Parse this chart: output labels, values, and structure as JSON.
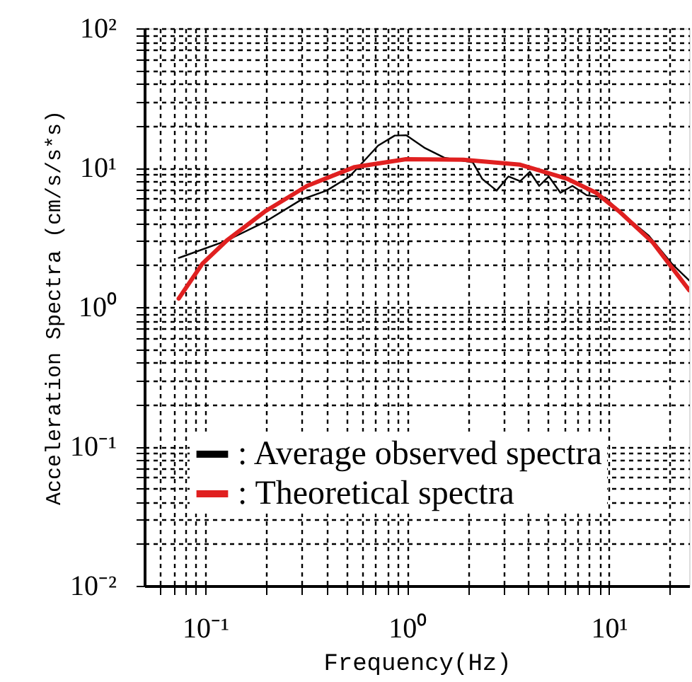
{
  "chart_data": {
    "type": "line",
    "xlabel": "Frequency(Hz)",
    "ylabel": "Acceleration Spectra (cm/s/s*s)",
    "log": "xy",
    "grid": true,
    "legend": "bottom left",
    "marker": "none",
    "line_style": "solid",
    "xlim": [
      0.05,
      25
    ],
    "ylim": [
      0.01,
      100
    ],
    "xticks": [
      {
        "value": 0.06,
        "label": null
      },
      {
        "value": 0.07,
        "label": null
      },
      {
        "value": 0.08,
        "label": null
      },
      {
        "value": 0.09,
        "label": null
      },
      {
        "value": 0.1,
        "label": "10⁻¹"
      },
      {
        "value": 0.2,
        "label": null
      },
      {
        "value": 0.3,
        "label": null
      },
      {
        "value": 0.4,
        "label": null
      },
      {
        "value": 0.5,
        "label": null
      },
      {
        "value": 0.6,
        "label": null
      },
      {
        "value": 0.7,
        "label": null
      },
      {
        "value": 0.8,
        "label": null
      },
      {
        "value": 0.9,
        "label": null
      },
      {
        "value": 1,
        "label": "10⁰"
      },
      {
        "value": 2,
        "label": null
      },
      {
        "value": 3,
        "label": null
      },
      {
        "value": 4,
        "label": null
      },
      {
        "value": 5,
        "label": null
      },
      {
        "value": 6,
        "label": null
      },
      {
        "value": 7,
        "label": null
      },
      {
        "value": 8,
        "label": null
      },
      {
        "value": 9,
        "label": null
      },
      {
        "value": 10,
        "label": "10¹"
      },
      {
        "value": 20,
        "label": null
      }
    ],
    "yticks": [
      {
        "value": 0.01,
        "label": "10⁻²"
      },
      {
        "value": 0.02,
        "label": null
      },
      {
        "value": 0.03,
        "label": null
      },
      {
        "value": 0.04,
        "label": null
      },
      {
        "value": 0.05,
        "label": null
      },
      {
        "value": 0.06,
        "label": null
      },
      {
        "value": 0.07,
        "label": null
      },
      {
        "value": 0.08,
        "label": null
      },
      {
        "value": 0.09,
        "label": null
      },
      {
        "value": 0.1,
        "label": "10⁻¹"
      },
      {
        "value": 0.2,
        "label": null
      },
      {
        "value": 0.3,
        "label": null
      },
      {
        "value": 0.4,
        "label": null
      },
      {
        "value": 0.5,
        "label": null
      },
      {
        "value": 0.6,
        "label": null
      },
      {
        "value": 0.7,
        "label": null
      },
      {
        "value": 0.8,
        "label": null
      },
      {
        "value": 0.9,
        "label": null
      },
      {
        "value": 1,
        "label": "10⁰"
      },
      {
        "value": 2,
        "label": null
      },
      {
        "value": 3,
        "label": null
      },
      {
        "value": 4,
        "label": null
      },
      {
        "value": 5,
        "label": null
      },
      {
        "value": 6,
        "label": null
      },
      {
        "value": 7,
        "label": null
      },
      {
        "value": 8,
        "label": null
      },
      {
        "value": 9,
        "label": null
      },
      {
        "value": 10,
        "label": "10¹"
      },
      {
        "value": 20,
        "label": null
      },
      {
        "value": 30,
        "label": null
      },
      {
        "value": 40,
        "label": null
      },
      {
        "value": 50,
        "label": null
      },
      {
        "value": 60,
        "label": null
      },
      {
        "value": 70,
        "label": null
      },
      {
        "value": 80,
        "label": null
      },
      {
        "value": 90,
        "label": null
      },
      {
        "value": 100,
        "label": "10²"
      }
    ],
    "series": [
      {
        "name": ": Average observed spectra",
        "color": "#000000",
        "x": [
          0.074,
          0.128,
          0.197,
          0.3,
          0.4,
          0.52,
          0.72,
          0.87,
          0.99,
          1.23,
          1.53,
          2.12,
          2.36,
          2.78,
          3.18,
          3.64,
          4.06,
          4.52,
          5.04,
          5.76,
          6.6,
          7.75,
          9.6,
          11.3,
          15.7,
          20.5,
          25
        ],
        "values": [
          2.25,
          3.0,
          4.07,
          5.9,
          6.85,
          8.65,
          14.4,
          17.0,
          17.1,
          13.8,
          11.8,
          10.9,
          8.3,
          6.85,
          8.65,
          8.0,
          9.35,
          7.4,
          8.65,
          6.6,
          7.4,
          6.35,
          6.1,
          4.83,
          3.27,
          2.05,
          1.55
        ]
      },
      {
        "name": ": Theoretical spectra",
        "color": "#e02020",
        "x": [
          0.074,
          0.097,
          0.128,
          0.197,
          0.32,
          0.55,
          0.99,
          1.9,
          3.64,
          6.25,
          8.65,
          11.3,
          16.5,
          25
        ],
        "values": [
          1.15,
          2.05,
          3.0,
          4.83,
          7.4,
          10.1,
          11.5,
          11.4,
          10.5,
          8.3,
          6.6,
          4.83,
          2.91,
          1.32
        ]
      }
    ]
  }
}
